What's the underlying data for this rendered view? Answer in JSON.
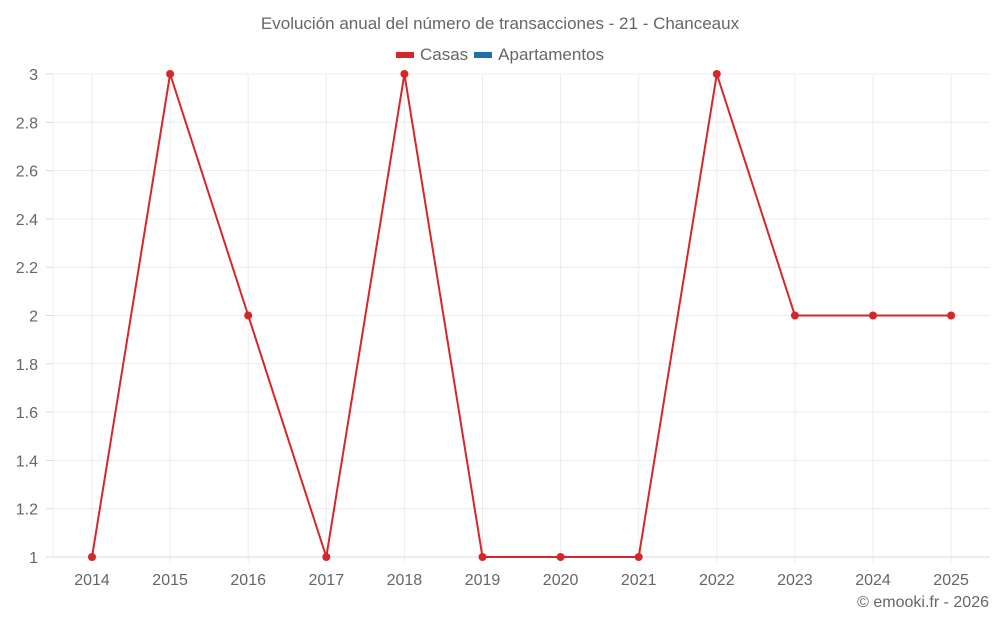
{
  "chart_data": {
    "type": "line",
    "title": "Evolución anual del número de transacciones - 21 - Chanceaux",
    "xlabel": "",
    "ylabel": "",
    "categories": [
      "2014",
      "2015",
      "2016",
      "2017",
      "2018",
      "2019",
      "2020",
      "2021",
      "2022",
      "2023",
      "2024",
      "2025"
    ],
    "series": [
      {
        "name": "Casas",
        "color": "#d62728",
        "values": [
          1,
          3,
          2,
          1,
          3,
          1,
          1,
          1,
          3,
          2,
          2,
          2
        ]
      },
      {
        "name": "Apartamentos",
        "color": "#1f6fa8",
        "values": []
      }
    ],
    "ylim": [
      1,
      3
    ],
    "yticks": [
      "1",
      "1.2",
      "1.4",
      "1.6",
      "1.8",
      "2",
      "2.2",
      "2.4",
      "2.6",
      "2.8",
      "3"
    ],
    "grid": true,
    "legend_position": "top"
  },
  "legend": {
    "items": [
      {
        "label": "Casas",
        "color": "#d62728"
      },
      {
        "label": "Apartamentos",
        "color": "#1f6fa8"
      }
    ]
  },
  "credit": "© emooki.fr - 2026"
}
